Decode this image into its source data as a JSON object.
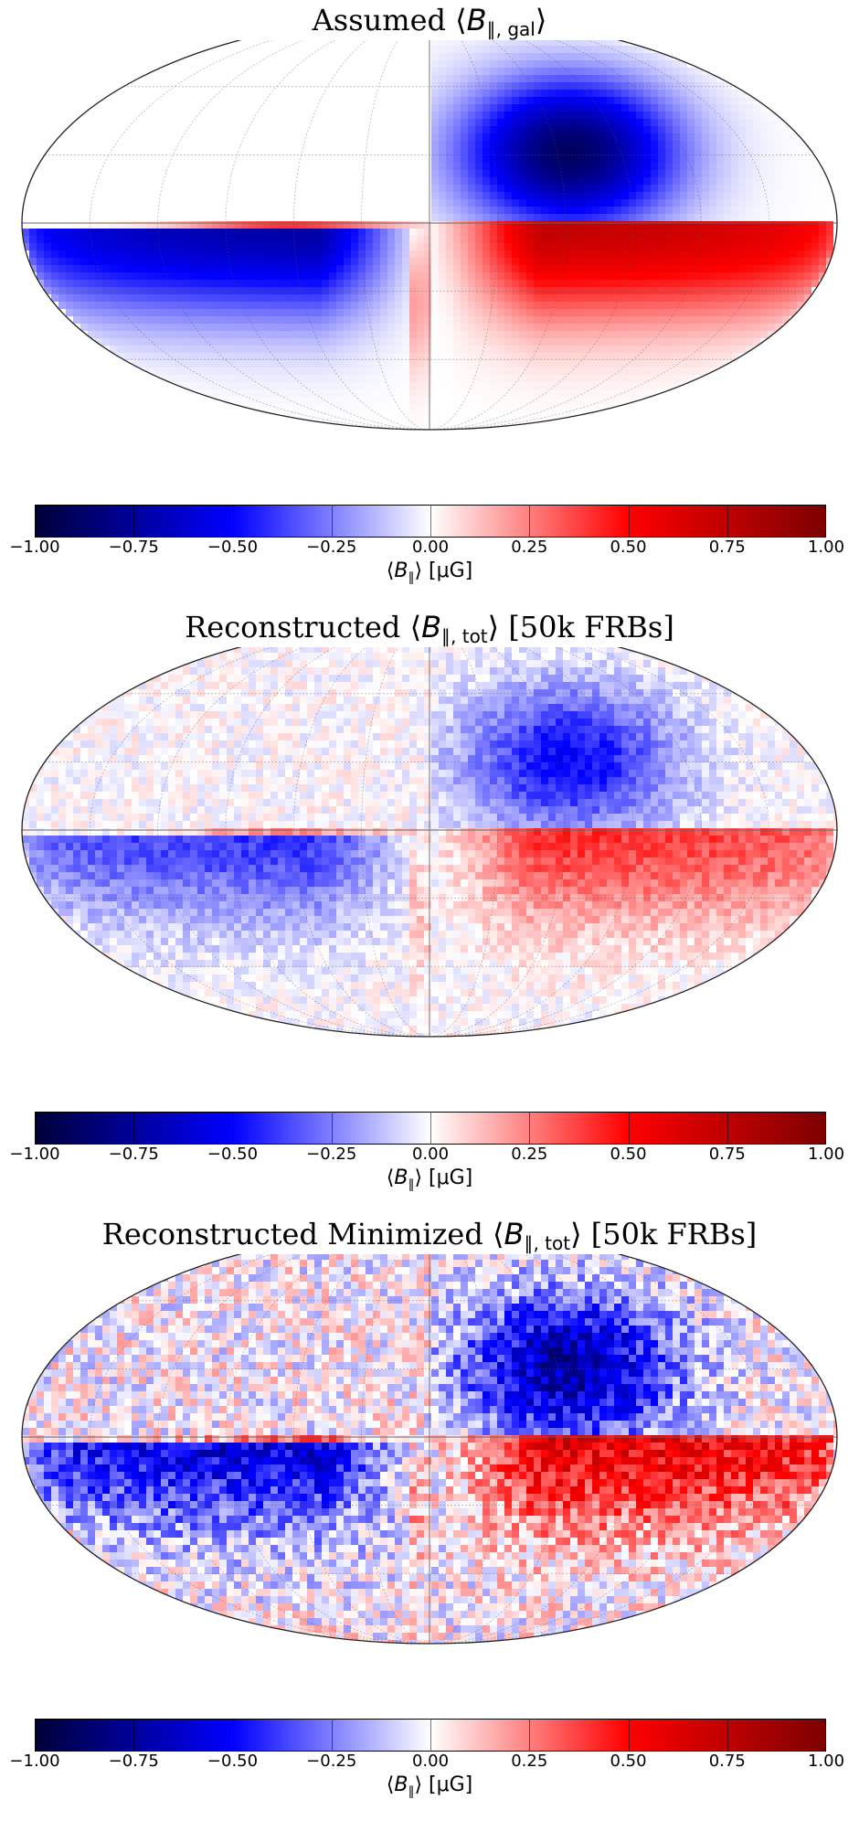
{
  "colorbar": {
    "ticks": [
      "−1.00",
      "−0.75",
      "−0.50",
      "−0.25",
      "0.00",
      "0.25",
      "0.50",
      "0.75",
      "1.00"
    ],
    "label_pre": "⟨",
    "label_sym": "B",
    "label_sub": "∥",
    "label_post": "⟩ [μG]",
    "colors": {
      "min": "#00003a",
      "low": "#0000ff",
      "mid": "#ffffff",
      "high": "#ff0000",
      "max": "#7d0000"
    }
  },
  "chart_data": [
    {
      "type": "heatmap",
      "projection": "mollweide",
      "title_pre": "Assumed ⟨",
      "title_sym": "B",
      "title_sub": "∥, gal",
      "title_post": "⟩",
      "clim": [
        -1.0,
        1.0
      ],
      "colorbar_label": "⟨B∥⟩ [μG]",
      "grid": true,
      "noise": 0.0,
      "amplitude": 1.0
    },
    {
      "type": "heatmap",
      "projection": "mollweide",
      "title_pre": "Reconstructed ⟨",
      "title_sym": "B",
      "title_sub": "∥, tot",
      "title_post": "⟩ [50k FRBs]",
      "clim": [
        -1.0,
        1.0
      ],
      "colorbar_label": "⟨B∥⟩ [μG]",
      "grid": true,
      "noise": 0.08,
      "amplitude": 0.55
    },
    {
      "type": "heatmap",
      "projection": "mollweide",
      "title_pre": "Reconstructed Minimized ⟨",
      "title_sym": "B",
      "title_sub": "∥, tot",
      "title_post": "⟩ [50k FRBs]",
      "clim": [
        -1.0,
        1.0
      ],
      "colorbar_label": "⟨B∥⟩ [μG]",
      "grid": true,
      "noise": 0.2,
      "amplitude": 0.8
    }
  ]
}
